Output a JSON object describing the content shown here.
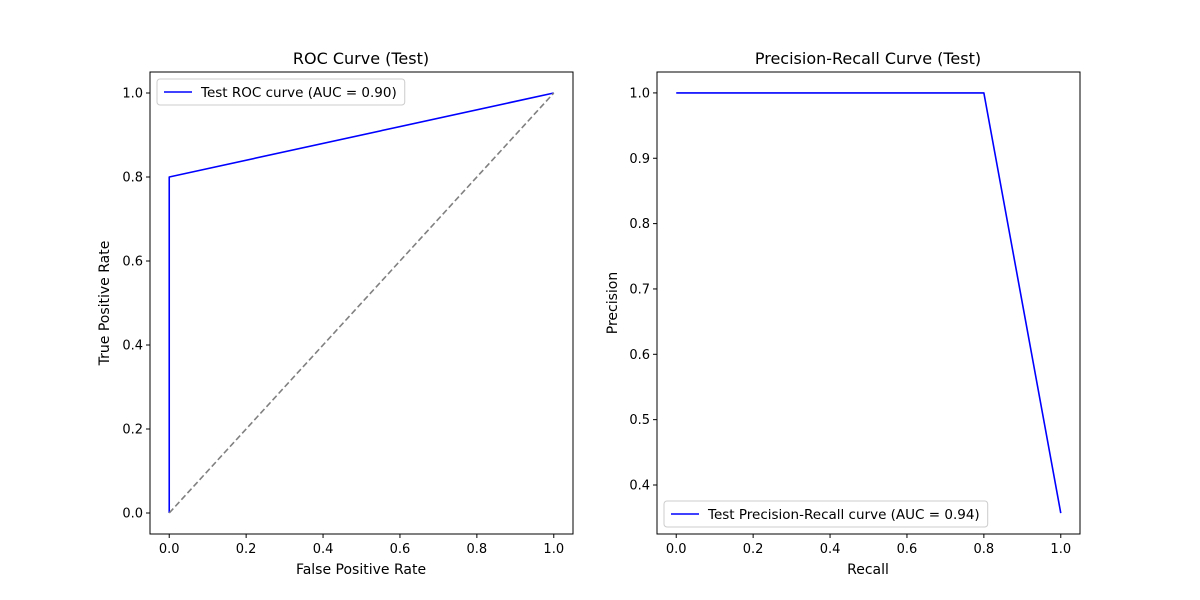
{
  "chart_data": [
    {
      "type": "line",
      "title": "ROC Curve (Test)",
      "xlabel": "False Positive Rate",
      "ylabel": "True Positive Rate",
      "xlim": [
        -0.05,
        1.05
      ],
      "ylim": [
        -0.05,
        1.05
      ],
      "xticks": [
        "0.0",
        "0.2",
        "0.4",
        "0.6",
        "0.8",
        "1.0"
      ],
      "yticks": [
        "0.0",
        "0.2",
        "0.4",
        "0.6",
        "0.8",
        "1.0"
      ],
      "grid": false,
      "legend_position": "upper left",
      "series": [
        {
          "name": "Test ROC curve (AUC = 0.90)",
          "color": "#0000ff",
          "style": "solid",
          "x": [
            0.0,
            0.0,
            1.0
          ],
          "y": [
            0.0,
            0.8,
            1.0
          ]
        },
        {
          "color": "#808080",
          "style": "dashed",
          "x": [
            0.0,
            1.0
          ],
          "y": [
            0.0,
            1.0
          ]
        }
      ]
    },
    {
      "type": "line",
      "title": "Precision-Recall Curve (Test)",
      "xlabel": "Recall",
      "ylabel": "Precision",
      "xlim": [
        -0.05,
        1.05
      ],
      "ylim": [
        0.325,
        1.032
      ],
      "xticks": [
        "0.0",
        "0.2",
        "0.4",
        "0.6",
        "0.8",
        "1.0"
      ],
      "yticks": [
        "0.4",
        "0.5",
        "0.6",
        "0.7",
        "0.8",
        "0.9",
        "1.0"
      ],
      "grid": false,
      "legend_position": "lower left",
      "series": [
        {
          "name": "Test Precision-Recall curve (AUC = 0.94)",
          "color": "#0000ff",
          "style": "solid",
          "x": [
            0.0,
            0.8,
            1.0
          ],
          "y": [
            1.0,
            1.0,
            0.357
          ]
        }
      ]
    }
  ]
}
